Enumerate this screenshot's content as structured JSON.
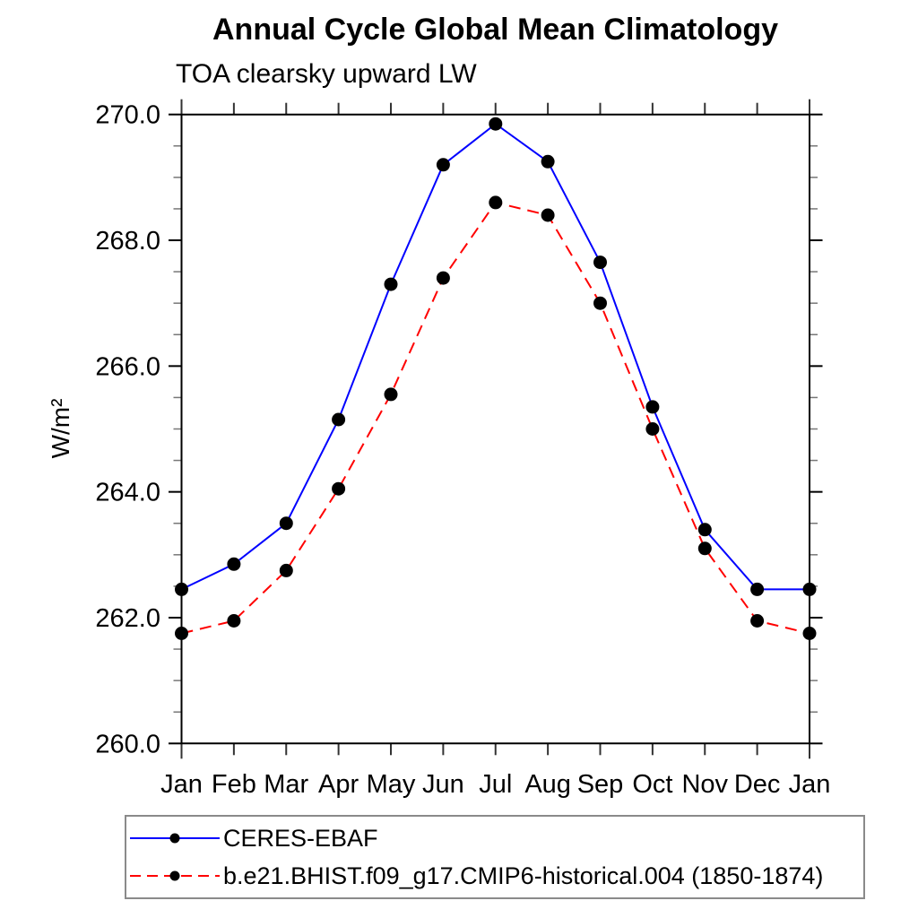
{
  "title": "Annual Cycle Global Mean Climatology",
  "subtitle": "TOA clearsky upward LW",
  "y_axis_title": "W/m²",
  "chart_data": {
    "type": "line",
    "title": "Annual Cycle Global Mean Climatology",
    "subtitle": "TOA clearsky upward LW",
    "xlabel": "",
    "ylabel": "W/m²",
    "categories": [
      "Jan",
      "Feb",
      "Mar",
      "Apr",
      "May",
      "Jun",
      "Jul",
      "Aug",
      "Sep",
      "Oct",
      "Nov",
      "Dec",
      "Jan"
    ],
    "series": [
      {
        "name": "CERES-EBAF",
        "color": "#0000ff",
        "line_style": "solid",
        "marker": "filled-circle",
        "marker_color": "#000000",
        "values": [
          262.45,
          262.85,
          263.5,
          265.15,
          267.3,
          269.2,
          269.85,
          269.25,
          267.65,
          265.35,
          263.4,
          262.45,
          262.45
        ]
      },
      {
        "name": "b.e21.BHIST.f09_g17.CMIP6-historical.004 (1850-1874)",
        "color": "#ff0000",
        "line_style": "dashed",
        "marker": "filled-circle",
        "marker_color": "#000000",
        "values": [
          261.75,
          261.95,
          262.75,
          264.05,
          265.55,
          267.4,
          268.6,
          268.4,
          267.0,
          265.0,
          263.1,
          261.95,
          261.75
        ]
      }
    ],
    "ylim": [
      260.0,
      270.0
    ],
    "ytick_values": [
      260,
      262,
      264,
      266,
      268,
      270
    ],
    "ytick_labels": [
      "260.0",
      "262.0",
      "264.0",
      "266.0",
      "268.0",
      "270.0"
    ],
    "yminor_interval": 0.5,
    "grid": false,
    "legend_position": "bottom-left-box",
    "axis_color": "#000000",
    "minor_tick_color": "#777777"
  }
}
